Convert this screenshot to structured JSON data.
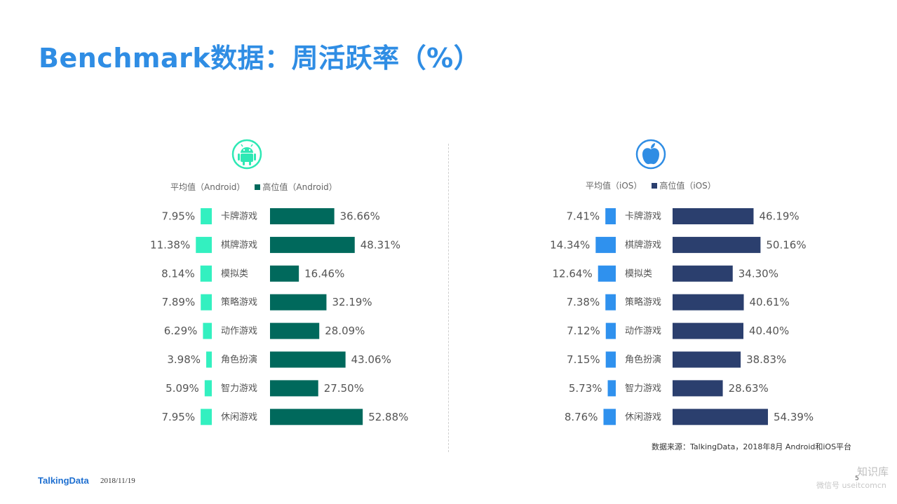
{
  "title": "Benchmark数据：周活跃率（%）",
  "footer": {
    "logo": "TalkingData",
    "date": "2018/11/19",
    "source": "数据来源：TalkingData，2018年8月 Android和iOS平台",
    "page_number": "5",
    "watermark_name": "知识库",
    "watermark_sub": "微信号 useitcomcn"
  },
  "icons": {
    "left": "android-icon",
    "right": "apple-icon"
  },
  "colors": {
    "android_avg": "#33f0c0",
    "android_high": "#00695c",
    "ios_avg": "#2f91ee",
    "ios_high": "#2b3f6e",
    "title": "#2f8de4"
  },
  "chart_data": [
    {
      "type": "bar",
      "platform": "Android",
      "categories": [
        "卡牌游戏",
        "棋牌游戏",
        "模拟类",
        "策略游戏",
        "动作游戏",
        "角色扮演",
        "智力游戏",
        "休闲游戏"
      ],
      "series": [
        {
          "name": "平均值（Android）",
          "values": [
            7.95,
            11.38,
            8.14,
            7.89,
            6.29,
            3.98,
            5.09,
            7.95
          ],
          "labels": [
            "7.95%",
            "11.38%",
            "8.14%",
            "7.89%",
            "6.29%",
            "3.98%",
            "5.09%",
            "7.95%"
          ]
        },
        {
          "name": "高位值（Android）",
          "values": [
            36.66,
            48.31,
            16.46,
            32.19,
            28.09,
            43.06,
            27.5,
            52.88
          ],
          "labels": [
            "36.66%",
            "48.31%",
            "16.46%",
            "32.19%",
            "28.09%",
            "43.06%",
            "27.50%",
            "52.88%"
          ]
        }
      ]
    },
    {
      "type": "bar",
      "platform": "iOS",
      "categories": [
        "卡牌游戏",
        "棋牌游戏",
        "模拟类",
        "策略游戏",
        "动作游戏",
        "角色扮演",
        "智力游戏",
        "休闲游戏"
      ],
      "series": [
        {
          "name": "平均值（iOS）",
          "values": [
            7.41,
            14.34,
            12.64,
            7.38,
            7.12,
            7.15,
            5.73,
            8.76
          ],
          "labels": [
            "7.41%",
            "14.34%",
            "12.64%",
            "7.38%",
            "7.12%",
            "7.15%",
            "5.73%",
            "8.76%"
          ]
        },
        {
          "name": "高位值（iOS）",
          "values": [
            46.19,
            50.16,
            34.3,
            40.61,
            40.4,
            38.83,
            28.63,
            54.39
          ],
          "labels": [
            "46.19%",
            "50.16%",
            "34.30%",
            "40.61%",
            "40.40%",
            "38.83%",
            "28.63%",
            "54.39%"
          ]
        }
      ]
    }
  ]
}
